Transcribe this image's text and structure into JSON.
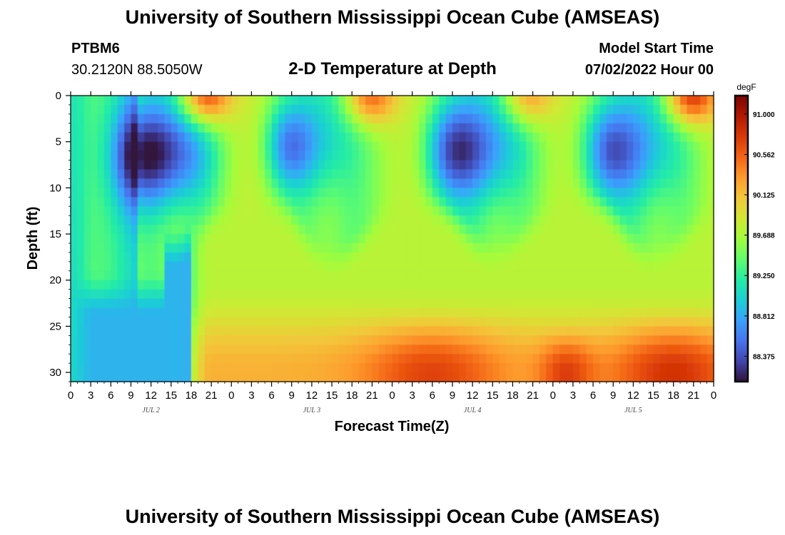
{
  "header": {
    "title": "University of Southern Mississippi Ocean Cube (AMSEAS)",
    "station": "PTBM6",
    "coords": "30.2120N  88.5050W",
    "plot_title": "2-D Temperature at Depth",
    "model_start_label": "Model Start Time",
    "model_start_value": "07/02/2022 Hour 00"
  },
  "footer": {
    "title": "University of Southern Mississippi Ocean Cube (AMSEAS)"
  },
  "chart_data": {
    "type": "heatmap",
    "title": "2-D Temperature at Depth",
    "xlabel": "Forecast Time(Z)",
    "ylabel": "Depth (ft)",
    "xlim": [
      0,
      96
    ],
    "ylim": [
      0,
      31
    ],
    "x_tick_labels": [
      "0",
      "3",
      "6",
      "9",
      "12",
      "15",
      "18",
      "21",
      "0",
      "3",
      "6",
      "9",
      "12",
      "15",
      "18",
      "21",
      "0",
      "3",
      "6",
      "9",
      "12",
      "15",
      "18",
      "21",
      "0",
      "3",
      "6",
      "9",
      "12",
      "15",
      "18",
      "21",
      "0"
    ],
    "y_ticks": [
      0,
      5,
      10,
      15,
      20,
      25,
      30
    ],
    "day_labels": [
      {
        "label": "JUL 2",
        "hour": 12
      },
      {
        "label": "JUL 3",
        "hour": 36
      },
      {
        "label": "JUL 4",
        "hour": 60
      },
      {
        "label": "JUL 5",
        "hour": 84
      }
    ],
    "colorbar": {
      "unit": "degF",
      "min": 88.1,
      "max": 91.2,
      "tick_values": [
        91.0,
        90.562,
        90.125,
        89.688,
        89.25,
        88.812,
        88.375
      ],
      "tick_labels": [
        "91.000",
        "90.562",
        "90.125",
        "89.688",
        "89.250",
        "88.812",
        "88.375"
      ],
      "colors": [
        "#30123b",
        "#4145ab",
        "#4675ed",
        "#39a2fc",
        "#1bcfd4",
        "#24eca6",
        "#61fc6c",
        "#a4fc3b",
        "#d1e834",
        "#f3c63a",
        "#fe9b2d",
        "#f36315",
        "#d93806",
        "#b11901",
        "#7a0403"
      ]
    }
  }
}
